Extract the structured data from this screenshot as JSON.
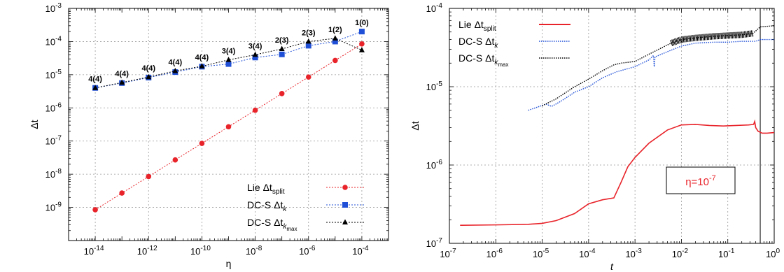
{
  "chart_data": [
    {
      "type": "line",
      "xlabel": "η",
      "ylabel": "Δt",
      "x_scale": "log",
      "y_scale": "log",
      "xlim": [
        1e-15,
        0.001
      ],
      "ylim": [
        1e-10,
        0.001
      ],
      "grid": true,
      "legend": "bottom-right",
      "x_ticks": [
        {
          "value": 1e-14,
          "base": "10",
          "exp": "-14"
        },
        {
          "value": 1e-12,
          "base": "10",
          "exp": "-12"
        },
        {
          "value": 1e-10,
          "base": "10",
          "exp": "-10"
        },
        {
          "value": 1e-08,
          "base": "10",
          "exp": "-8"
        },
        {
          "value": 1e-06,
          "base": "10",
          "exp": "-6"
        },
        {
          "value": 0.0001,
          "base": "10",
          "exp": "-4"
        }
      ],
      "y_ticks": [
        {
          "value": 1e-09,
          "base": "10",
          "exp": "-9"
        },
        {
          "value": 1e-08,
          "base": "10",
          "exp": "-8"
        },
        {
          "value": 1e-07,
          "base": "10",
          "exp": "-7"
        },
        {
          "value": 1e-06,
          "base": "10",
          "exp": "-6"
        },
        {
          "value": 1e-05,
          "base": "10",
          "exp": "-5"
        },
        {
          "value": 0.0001,
          "base": "10",
          "exp": "-4"
        },
        {
          "value": 0.001,
          "base": "10",
          "exp": "-3"
        }
      ],
      "x": [
        1e-14,
        1e-13,
        1e-12,
        1e-11,
        1e-10,
        1e-09,
        1e-08,
        1e-07,
        1e-06,
        1e-05,
        0.0001
      ],
      "series": [
        {
          "name": "Lie Δt_split",
          "label_main": "Lie Δt",
          "label_sub": "split",
          "color": "#e8232a",
          "marker": "circle",
          "values": [
            8.5e-10,
            2.7e-09,
            8.5e-09,
            2.7e-08,
            8.5e-08,
            2.7e-07,
            8.5e-07,
            2.7e-06,
            8.5e-06,
            2.7e-05,
            8.5e-05
          ]
        },
        {
          "name": "DC-S Δt_k",
          "label_main": "DC-S Δt",
          "label_sub": "k",
          "color": "#1f4fd6",
          "marker": "square",
          "values": [
            4e-06,
            5.6e-06,
            8.2e-06,
            1.2e-05,
            1.75e-05,
            2.1e-05,
            3.3e-05,
            4.1e-05,
            7.5e-05,
            0.0001,
            0.0002
          ]
        },
        {
          "name": "DC-S Δt_kmax",
          "label_main": "DC-S Δt",
          "label_sub": "k",
          "label_subsub": "max",
          "color": "#000000",
          "marker": "triangle",
          "values": [
            4e-06,
            5.8e-06,
            8.5e-06,
            1.3e-05,
            1.8e-05,
            2.8e-05,
            4e-05,
            6e-05,
            0.0001,
            0.000125,
            5.5e-05
          ]
        }
      ],
      "annotations": [
        {
          "text": "4(4)",
          "x": 1e-14,
          "y": 4e-06
        },
        {
          "text": "4(4)",
          "x": 1e-13,
          "y": 5.8e-06
        },
        {
          "text": "4(4)",
          "x": 1e-12,
          "y": 8.5e-06
        },
        {
          "text": "4(4)",
          "x": 1e-11,
          "y": 1.3e-05
        },
        {
          "text": "4(4)",
          "x": 1e-10,
          "y": 1.8e-05
        },
        {
          "text": "3(4)",
          "x": 1e-09,
          "y": 2.8e-05
        },
        {
          "text": "3(4)",
          "x": 1e-08,
          "y": 4e-05
        },
        {
          "text": "2(3)",
          "x": 1e-07,
          "y": 6e-05
        },
        {
          "text": "2(3)",
          "x": 1e-06,
          "y": 0.0001
        },
        {
          "text": "1(2)",
          "x": 1e-05,
          "y": 0.000125
        },
        {
          "text": "1(0)",
          "x": 0.0001,
          "y": 0.0002
        }
      ]
    },
    {
      "type": "line",
      "xlabel": "t",
      "ylabel": "Δt",
      "x_scale": "log",
      "y_scale": "log",
      "xlim": [
        1e-07,
        1
      ],
      "ylim": [
        1e-07,
        0.0001
      ],
      "grid": true,
      "legend": "top-left",
      "vline_x": 0.5,
      "x_ticks": [
        {
          "value": 1e-07,
          "base": "10",
          "exp": "-7"
        },
        {
          "value": 1e-06,
          "base": "10",
          "exp": "-6"
        },
        {
          "value": 1e-05,
          "base": "10",
          "exp": "-5"
        },
        {
          "value": 0.0001,
          "base": "10",
          "exp": "-4"
        },
        {
          "value": 0.001,
          "base": "10",
          "exp": "-3"
        },
        {
          "value": 0.01,
          "base": "10",
          "exp": "-2"
        },
        {
          "value": 0.1,
          "base": "10",
          "exp": "-1"
        },
        {
          "value": 1,
          "base": "10",
          "exp": "0"
        }
      ],
      "y_ticks": [
        {
          "value": 1e-07,
          "base": "10",
          "exp": "-7"
        },
        {
          "value": 1e-06,
          "base": "10",
          "exp": "-6"
        },
        {
          "value": 1e-05,
          "base": "10",
          "exp": "-5"
        },
        {
          "value": 0.0001,
          "base": "10",
          "exp": "-4"
        }
      ],
      "series": [
        {
          "name": "Lie Δt_split",
          "label_main": "Lie Δt",
          "label_sub": "split",
          "color": "#e8232a",
          "style": "solid",
          "points": [
            [
              1.7e-07,
              1.7e-07
            ],
            [
              1e-06,
              1.72e-07
            ],
            [
              5e-06,
              1.75e-07
            ],
            [
              1e-05,
              1.8e-07
            ],
            [
              2e-05,
              1.95e-07
            ],
            [
              5e-05,
              2.4e-07
            ],
            [
              0.0001,
              3.2e-07
            ],
            [
              0.0002,
              3.6e-07
            ],
            [
              0.00035,
              3.8e-07
            ],
            [
              0.0005,
              6e-07
            ],
            [
              0.0007,
              9.5e-07
            ],
            [
              0.001,
              1.25e-06
            ],
            [
              0.002,
              1.9e-06
            ],
            [
              0.005,
              2.8e-06
            ],
            [
              0.01,
              3.25e-06
            ],
            [
              0.02,
              3.3e-06
            ],
            [
              0.04,
              3.2e-06
            ],
            [
              0.08,
              3.15e-06
            ],
            [
              0.15,
              3.2e-06
            ],
            [
              0.28,
              3.25e-06
            ],
            [
              0.36,
              3.3e-06
            ],
            [
              0.38,
              3.6e-06
            ],
            [
              0.4,
              3e-06
            ],
            [
              0.45,
              2.7e-06
            ],
            [
              0.55,
              2.55e-06
            ],
            [
              0.7,
              2.55e-06
            ],
            [
              1,
              2.6e-06
            ]
          ]
        },
        {
          "name": "DC-S Δt_k",
          "label_main": "DC-S Δt",
          "label_sub": "k",
          "color": "#1f4fd6",
          "style": "dotted",
          "points": [
            [
              5e-06,
              5e-06
            ],
            [
              8e-06,
              5.5e-06
            ],
            [
              1.2e-05,
              6e-06
            ],
            [
              1.6e-05,
              5.6e-06
            ],
            [
              2.5e-05,
              6.5e-06
            ],
            [
              5e-05,
              8.5e-06
            ],
            [
              0.0001,
              1e-05
            ],
            [
              0.0002,
              1.3e-05
            ],
            [
              0.0004,
              1.55e-05
            ],
            [
              0.0007,
              1.7e-05
            ],
            [
              0.001,
              1.8e-05
            ],
            [
              0.002,
              2.2e-05
            ],
            [
              0.0025,
              2.5e-05
            ],
            [
              0.0026,
              1.8e-05
            ],
            [
              0.0027,
              2.4e-05
            ],
            [
              0.005,
              2.8e-05
            ],
            [
              0.01,
              3.3e-05
            ],
            [
              0.02,
              3.6e-05
            ],
            [
              0.05,
              3.7e-05
            ],
            [
              0.1,
              3.7e-05
            ],
            [
              0.2,
              3.8e-05
            ],
            [
              0.4,
              3.8e-05
            ],
            [
              0.5,
              4e-05
            ],
            [
              1,
              4e-05
            ]
          ]
        },
        {
          "name": "DC-S Δt_kmax",
          "label_main": "DC-S Δt",
          "label_sub": "k",
          "label_subsub": "max",
          "color": "#000000",
          "style": "dotted",
          "points": [
            [
              1e-05,
              5.7e-06
            ],
            [
              2e-05,
              7e-06
            ],
            [
              5e-05,
              1e-05
            ],
            [
              0.0001,
              1.25e-05
            ],
            [
              0.0002,
              1.6e-05
            ],
            [
              0.00035,
              1.9e-05
            ],
            [
              0.0005,
              2e-05
            ],
            [
              0.001,
              2.1e-05
            ],
            [
              0.002,
              2.6e-05
            ],
            [
              0.004,
              3.2e-05
            ],
            [
              0.006,
              3.6e-05
            ],
            [
              0.01,
              4e-05
            ],
            [
              0.02,
              4.2e-05
            ],
            [
              0.05,
              4.4e-05
            ],
            [
              0.1,
              4.5e-05
            ],
            [
              0.2,
              4.6e-05
            ],
            [
              0.35,
              4.8e-05
            ],
            [
              0.5,
              5.8e-05
            ],
            [
              1,
              6e-05
            ]
          ]
        }
      ],
      "annotation_box": {
        "prefix": "η=10",
        "exp": "-7",
        "color": "#e8232a"
      }
    }
  ]
}
